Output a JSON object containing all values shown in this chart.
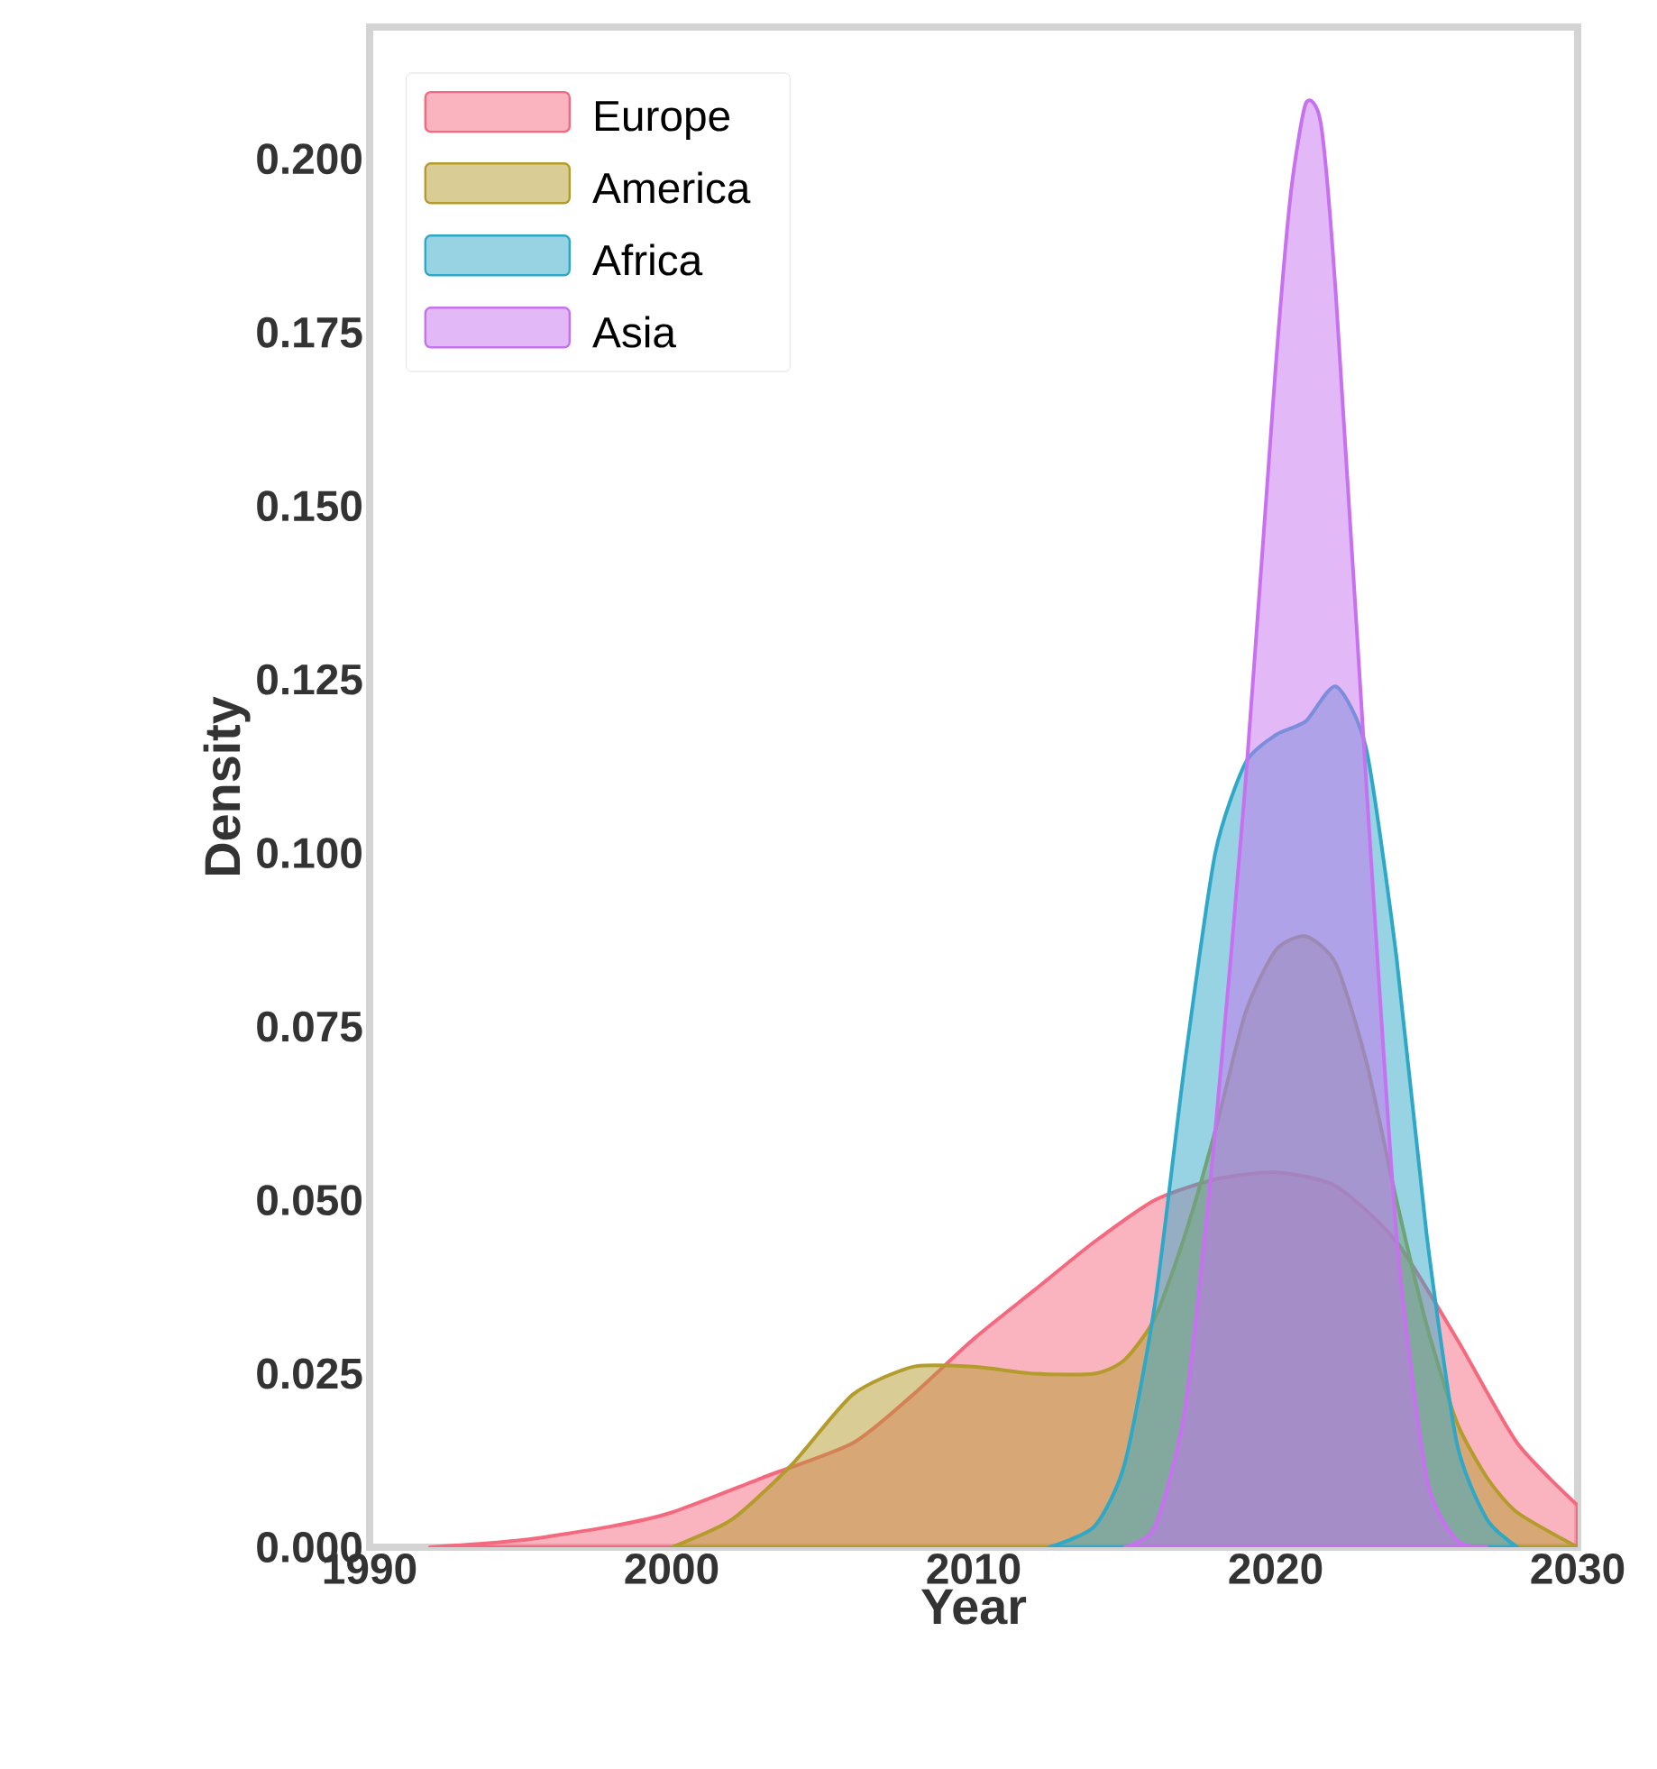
{
  "chart_data": {
    "type": "area",
    "xlabel": "Year",
    "ylabel": "Density",
    "xlim": [
      1990,
      2030
    ],
    "ylim": [
      0,
      0.219
    ],
    "xticks": [
      1990,
      2000,
      2010,
      2020,
      2030
    ],
    "yticks": [
      {
        "value": 0,
        "label": "0.000"
      },
      {
        "value": 0.025,
        "label": "0.025"
      },
      {
        "value": 0.05,
        "label": "0.050"
      },
      {
        "value": 0.075,
        "label": "0.075"
      },
      {
        "value": 0.1,
        "label": "0.100"
      },
      {
        "value": 0.125,
        "label": "0.125"
      },
      {
        "value": 0.15,
        "label": "0.150"
      },
      {
        "value": 0.175,
        "label": "0.175"
      },
      {
        "value": 0.2,
        "label": "0.200"
      }
    ],
    "grid": false,
    "legend": "top left",
    "series": [
      {
        "name": "Europe",
        "color": "#f5697f",
        "x": [
          1992,
          1995,
          1998,
          2000,
          2003,
          2006,
          2008,
          2010,
          2012,
          2014,
          2016,
          2018,
          2020,
          2022,
          2024,
          2026,
          2028,
          2030
        ],
        "values": [
          0,
          0.001,
          0.003,
          0.005,
          0.01,
          0.015,
          0.022,
          0.03,
          0.037,
          0.044,
          0.05,
          0.053,
          0.054,
          0.052,
          0.044,
          0.03,
          0.015,
          0.006
        ]
      },
      {
        "name": "America",
        "color": "#b39c2b",
        "x": [
          2000,
          2002,
          2004,
          2006,
          2008,
          2010,
          2012,
          2014,
          2015,
          2016,
          2017,
          2018,
          2019,
          2020,
          2021,
          2022,
          2023,
          2024,
          2025,
          2026,
          2027,
          2028,
          2030
        ],
        "values": [
          0,
          0.004,
          0.012,
          0.022,
          0.026,
          0.026,
          0.025,
          0.025,
          0.027,
          0.033,
          0.045,
          0.06,
          0.077,
          0.086,
          0.088,
          0.084,
          0.07,
          0.05,
          0.032,
          0.018,
          0.01,
          0.005,
          0
        ]
      },
      {
        "name": "Africa",
        "color": "#2fa8c7",
        "x": [
          2012.5,
          2014,
          2015,
          2016,
          2017,
          2018,
          2019,
          2020,
          2021,
          2022,
          2023,
          2024,
          2025,
          2026,
          2027,
          2028
        ],
        "values": [
          0,
          0.003,
          0.012,
          0.035,
          0.07,
          0.1,
          0.113,
          0.117,
          0.119,
          0.124,
          0.115,
          0.085,
          0.045,
          0.015,
          0.004,
          0
        ]
      },
      {
        "name": "Asia",
        "color": "#c871f0",
        "x": [
          2015,
          2016,
          2017,
          2018,
          2019,
          2020,
          2020.5,
          2021,
          2021.5,
          2022,
          2023,
          2024,
          2025,
          2026,
          2027
        ],
        "values": [
          0,
          0.003,
          0.02,
          0.06,
          0.11,
          0.17,
          0.195,
          0.208,
          0.205,
          0.18,
          0.11,
          0.045,
          0.01,
          0.001,
          0
        ]
      }
    ]
  }
}
